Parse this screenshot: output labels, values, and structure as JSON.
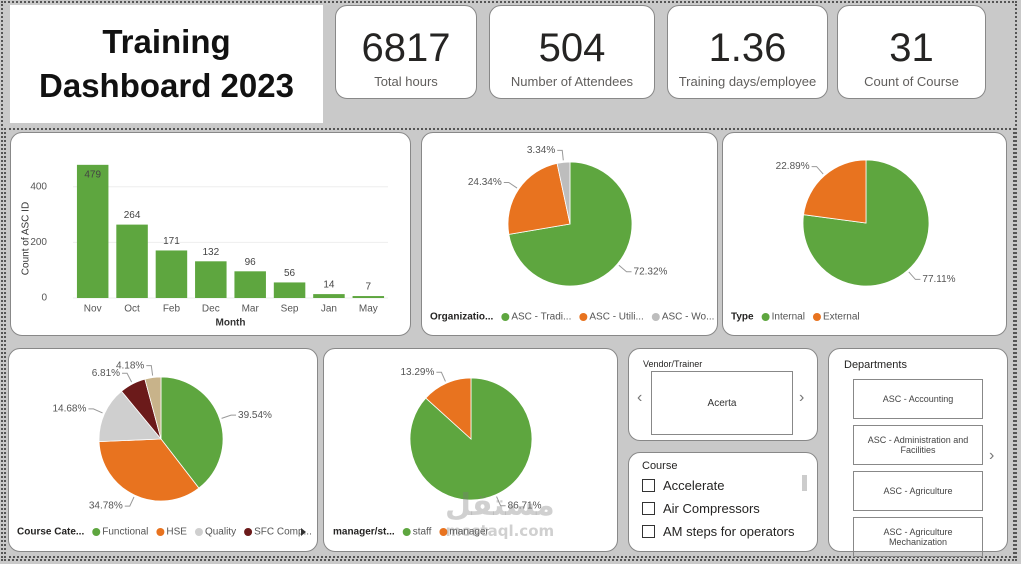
{
  "header": {
    "title": "Training Dashboard 2023"
  },
  "kpis": [
    {
      "value": 6817,
      "label": "Total hours"
    },
    {
      "value": 504,
      "label": "Number of Attendees"
    },
    {
      "value": 1.36,
      "label": "Training days/employee"
    },
    {
      "value": 31,
      "label": "Count of Course"
    }
  ],
  "chart_data": [
    {
      "type": "bar",
      "x_label": "Month",
      "y_label": "Count of ASC ID",
      "categories": [
        "Nov",
        "Oct",
        "Feb",
        "Dec",
        "Mar",
        "Sep",
        "Jan",
        "May"
      ],
      "values": [
        479,
        264,
        171,
        132,
        96,
        56,
        14,
        7
      ],
      "color": "#5ea63f",
      "ylim": [
        0,
        500
      ],
      "yticks": [
        0,
        200,
        400
      ],
      "grid": true
    },
    {
      "type": "pie",
      "legend_title": "Organizatio...",
      "categories": [
        "ASC - Tradi...",
        "ASC - Utili...",
        "ASC - Wo..."
      ],
      "values": [
        72.32,
        24.34,
        3.34
      ],
      "value_labels": [
        "72.32%",
        "24.34%",
        "3.34%"
      ],
      "colors": [
        "#5ea63f",
        "#e8731f",
        "#bdbdbd"
      ]
    },
    {
      "type": "pie",
      "legend_title": "Type",
      "categories": [
        "Internal",
        "External"
      ],
      "values": [
        77.11,
        22.89
      ],
      "value_labels": [
        "77.11%",
        "22.89%"
      ],
      "colors": [
        "#5ea63f",
        "#e8731f"
      ]
    },
    {
      "type": "pie",
      "legend_title": "Course Cate...",
      "categories": [
        "Functional",
        "HSE",
        "Quality",
        "SFC Comp...",
        null
      ],
      "values": [
        39.54,
        34.78,
        14.68,
        6.81,
        4.18
      ],
      "value_labels": [
        "39.54%",
        "34.78%",
        "14.68%",
        "6.81%",
        "4.18%"
      ],
      "colors": [
        "#5ea63f",
        "#e8731f",
        "#cfcfcf",
        "#6b1a1a",
        "#c8b38a"
      ]
    },
    {
      "type": "pie",
      "legend_title": "manager/st...",
      "categories": [
        "staff",
        "manager"
      ],
      "values": [
        86.71,
        13.29
      ],
      "value_labels": [
        "86.71%",
        "13.29%"
      ],
      "colors": [
        "#5ea63f",
        "#e8731f"
      ]
    }
  ],
  "slicers": {
    "vendor": {
      "title": "Vendor/Trainer",
      "value": "Acerta"
    },
    "course": {
      "title": "Course",
      "items": [
        "Accelerate",
        "Air Compressors",
        "AM steps for operators"
      ]
    },
    "departments": {
      "title": "Departments",
      "items": [
        "ASC - Accounting",
        "ASC - Administration and Facilities",
        "ASC - Agriculture",
        "ASC - Agriculture Mechanization"
      ]
    }
  },
  "watermark": {
    "arabic": "مستقل",
    "latin": "mostaql.com"
  }
}
